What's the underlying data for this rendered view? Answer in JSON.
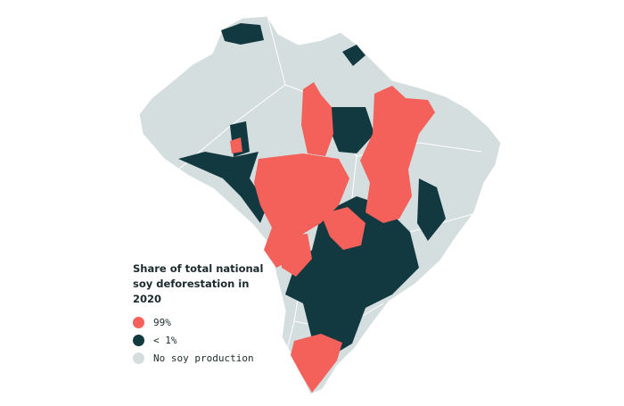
{
  "legend": {
    "title": "Share of total national soy deforestation in 2020",
    "items": [
      {
        "label": "99%",
        "color": "#f4605a"
      },
      {
        "label": "< 1%",
        "color": "#123840"
      },
      {
        "label": "No soy production",
        "color": "#d5dede"
      }
    ]
  }
}
